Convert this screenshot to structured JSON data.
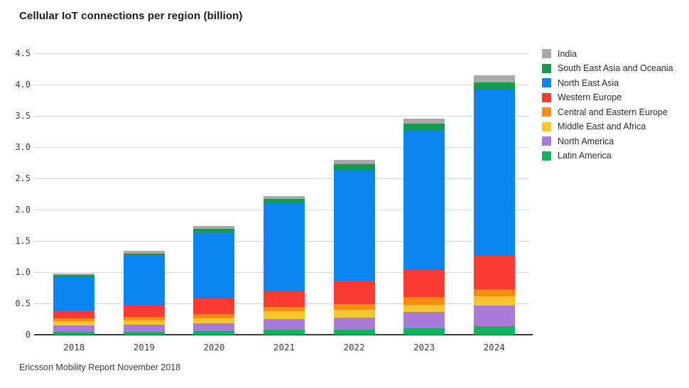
{
  "title": "Cellular IoT connections per region (billion)",
  "footer": "Ericsson Mobility Report November 2018",
  "chart_data": {
    "type": "bar",
    "stacked": true,
    "title": "Cellular IoT connections per region (billion)",
    "xlabel": "",
    "ylabel": "",
    "categories": [
      "2018",
      "2019",
      "2020",
      "2021",
      "2022",
      "2023",
      "2024"
    ],
    "series": [
      {
        "name": "Latin America",
        "color": "#10b45e",
        "values": [
          0.05,
          0.05,
          0.06,
          0.08,
          0.08,
          0.1,
          0.14
        ]
      },
      {
        "name": "North America",
        "color": "#a77bd6",
        "values": [
          0.1,
          0.11,
          0.12,
          0.17,
          0.19,
          0.26,
          0.33
        ]
      },
      {
        "name": "Middle East and Africa",
        "color": "#f6c62d",
        "values": [
          0.07,
          0.07,
          0.08,
          0.12,
          0.13,
          0.12,
          0.14
        ]
      },
      {
        "name": "Central and Eastern Europe",
        "color": "#fb8b13",
        "values": [
          0.04,
          0.06,
          0.07,
          0.07,
          0.09,
          0.12,
          0.12
        ]
      },
      {
        "name": "Western Europe",
        "color": "#f93b32",
        "values": [
          0.13,
          0.19,
          0.25,
          0.27,
          0.37,
          0.43,
          0.53
        ]
      },
      {
        "name": "North East Asia",
        "color": "#0a84ef",
        "values": [
          0.53,
          0.78,
          1.06,
          1.4,
          1.78,
          2.24,
          2.66
        ]
      },
      {
        "name": "South East Asia and Oceania",
        "color": "#159a4c",
        "values": [
          0.03,
          0.04,
          0.05,
          0.06,
          0.09,
          0.11,
          0.11
        ]
      },
      {
        "name": "India",
        "color": "#a9a9a9",
        "values": [
          0.03,
          0.04,
          0.05,
          0.05,
          0.07,
          0.08,
          0.12
        ]
      }
    ],
    "totals": [
      0.98,
      1.34,
      1.74,
      2.22,
      2.8,
      3.46,
      4.15
    ],
    "ylim": [
      0,
      4.5
    ],
    "ytick_step": 0.5,
    "yticks": [
      "0",
      "0.5",
      "1.0",
      "1.5",
      "2.0",
      "2.5",
      "3.0",
      "3.5",
      "4.0",
      "4.5"
    ],
    "grid": true,
    "legend_position": "right",
    "legend_order": "top-of-stack-first"
  },
  "colors": {
    "background": "#ffffff",
    "gridline": "#d9d9d9",
    "axis_line": "#3a3a3a",
    "tick_text": "#3f3f3f",
    "title_text": "#1b1b1b"
  }
}
